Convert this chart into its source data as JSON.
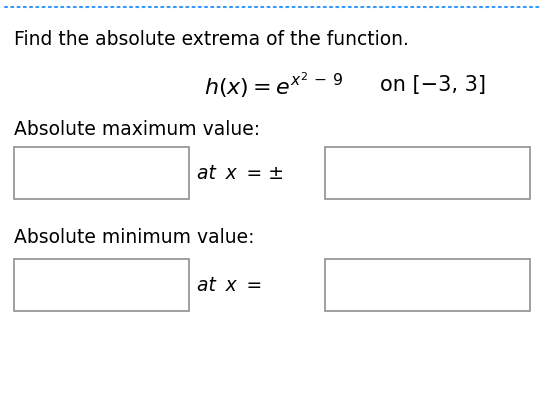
{
  "title": "Find the absolute extrema of the function.",
  "abs_max_label": "Absolute maximum value:",
  "abs_min_label": "Absolute minimum value:",
  "at_x_pm": "at  x  = ±",
  "at_x_eq": "at  x  =",
  "bg_color": "#ffffff",
  "border_color": "#3399ff",
  "box_edge_color": "#999999",
  "text_color": "#000000",
  "light_gray_bg": "#f5f5f5",
  "title_fontsize": 13.5,
  "label_fontsize": 13.5,
  "math_fontsize": 14
}
